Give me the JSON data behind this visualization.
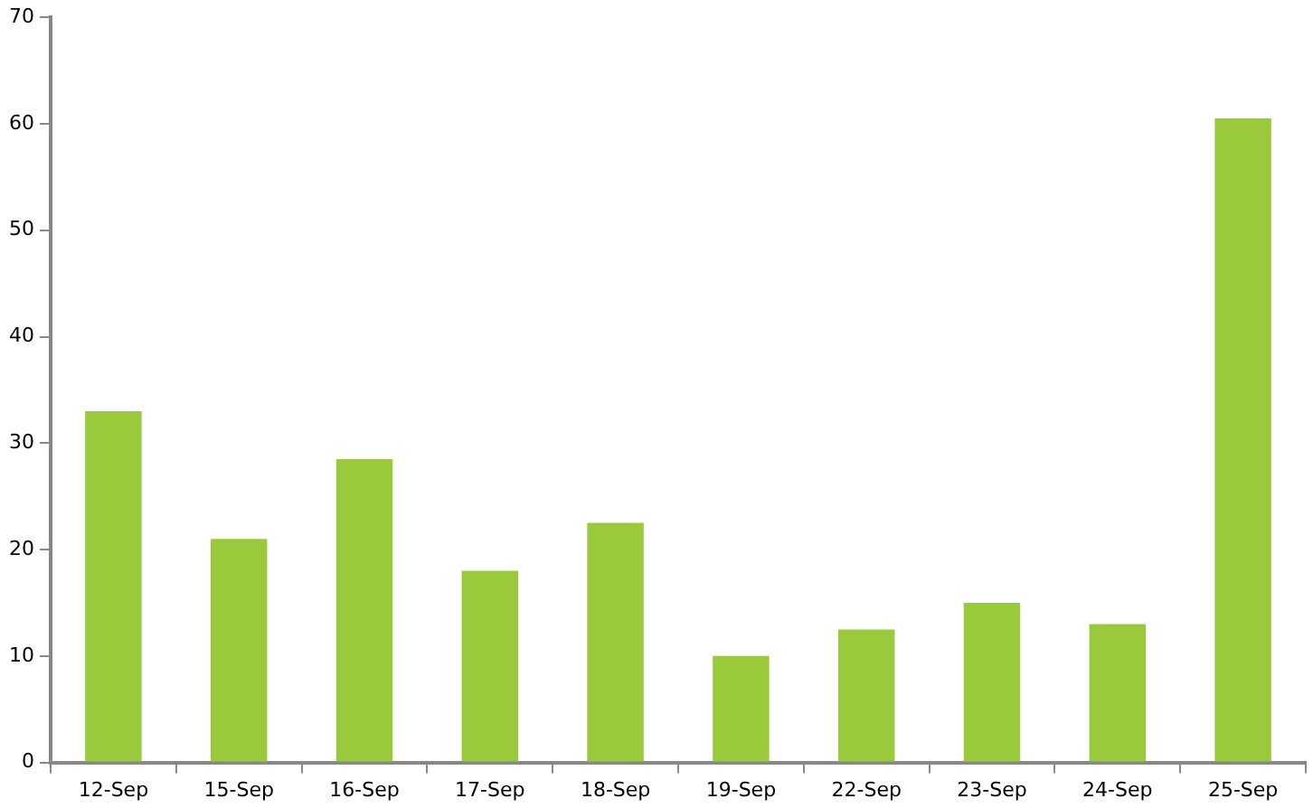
{
  "chart_data": {
    "type": "bar",
    "categories": [
      "12-Sep",
      "15-Sep",
      "16-Sep",
      "17-Sep",
      "18-Sep",
      "19-Sep",
      "22-Sep",
      "23-Sep",
      "24-Sep",
      "25-Sep"
    ],
    "values": [
      33,
      21,
      28.5,
      18,
      22.5,
      10,
      12.5,
      15,
      13,
      60.5
    ],
    "color": "#9ac93c",
    "ylim": [
      0,
      70
    ],
    "yticks": [
      0,
      10,
      20,
      30,
      40,
      50,
      60,
      70
    ],
    "grid": false,
    "legend": false
  }
}
